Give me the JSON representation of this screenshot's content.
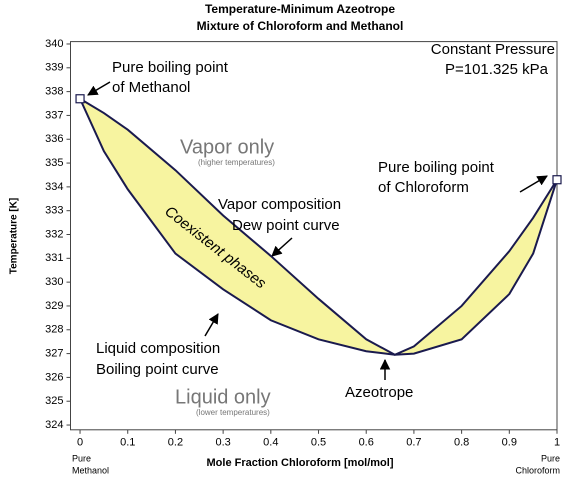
{
  "chart_data": {
    "type": "line",
    "title": [
      "Temperature-Minimum Azeotrope",
      "Mixture of Chloroform and Methanol"
    ],
    "xlabel": "Mole Fraction Chloroform [mol/mol]",
    "ylabel": "Temperature [K]",
    "x_end_labels": [
      [
        "Pure",
        "Methanol"
      ],
      [
        "Pure",
        "Chloroform"
      ]
    ],
    "x": [
      0,
      0.05,
      0.1,
      0.2,
      0.3,
      0.4,
      0.5,
      0.6,
      0.66,
      0.7,
      0.8,
      0.9,
      0.95,
      1
    ],
    "series": [
      {
        "name": "Dew point curve",
        "color": "#1a1a4e",
        "values": [
          337.7,
          337.1,
          336.4,
          334.7,
          332.8,
          331.1,
          329.3,
          327.6,
          326.95,
          327.3,
          329.0,
          331.3,
          332.7,
          334.3
        ]
      },
      {
        "name": "Boiling point curve",
        "color": "#1a1a4e",
        "values": [
          337.7,
          335.5,
          333.9,
          331.2,
          329.7,
          328.4,
          327.6,
          327.1,
          326.95,
          327.0,
          327.6,
          329.5,
          331.2,
          334.3
        ]
      }
    ],
    "fill_color": "#f7f4a0",
    "xlim": [
      -0.02,
      1.0
    ],
    "xticks": [
      0,
      0.1,
      0.2,
      0.3,
      0.4,
      0.5,
      0.6,
      0.7,
      0.8,
      0.9,
      1
    ],
    "ylim": [
      323.8,
      340.1
    ],
    "yticks": [
      324,
      325,
      326,
      327,
      328,
      329,
      330,
      331,
      332,
      333,
      334,
      335,
      336,
      337,
      338,
      339,
      340
    ],
    "grid": false,
    "annotations": [
      "Constant Pressure",
      "P=101.325 kPa",
      "Pure boiling point",
      "of Methanol",
      "Vapor only",
      "(higher temperatures)",
      "Pure boiling point",
      "of Chloroform",
      "Vapor composition",
      "Dew point curve",
      "Coexistent phases",
      "Liquid composition",
      "Boiling point curve",
      "Liquid only",
      "(lower temperatures)",
      "Azeotrope"
    ]
  }
}
